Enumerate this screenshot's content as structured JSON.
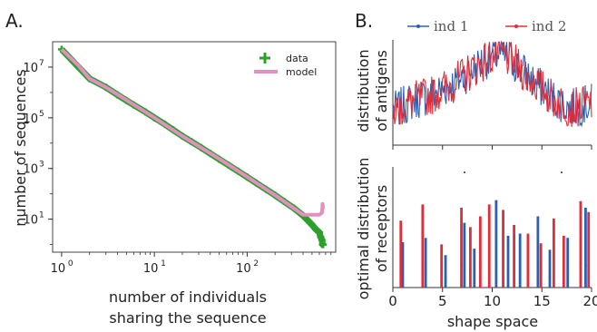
{
  "chart_data": [
    {
      "panel": "A.",
      "type": "scatter",
      "xlabel_line1": "number of individuals",
      "xlabel_line2": "sharing the sequence",
      "ylabel": "number of sequences",
      "xscale": "log",
      "yscale": "log",
      "xlim": [
        0.8,
        900
      ],
      "ylim": [
        0.5,
        100000000
      ],
      "xtick_values": [
        1,
        10,
        100
      ],
      "xtick_labels": [
        {
          "base": "10",
          "exp": "0"
        },
        {
          "base": "10",
          "exp": "1"
        },
        {
          "base": "10",
          "exp": "2"
        }
      ],
      "ytick_values": [
        10,
        1000,
        100000,
        10000000
      ],
      "ytick_labels": [
        {
          "base": "10",
          "exp": "1"
        },
        {
          "base": "10",
          "exp": "3"
        },
        {
          "base": "10",
          "exp": "5"
        },
        {
          "base": "10",
          "exp": "7"
        }
      ],
      "legend_position": "top-right",
      "series": [
        {
          "name": "data",
          "color": "#2ca02c",
          "marker": "plus",
          "x": [
            1,
            2,
            3,
            4,
            5,
            6,
            8,
            10,
            13,
            16,
            20,
            25,
            32,
            40,
            50,
            63,
            80,
            100,
            126,
            160,
            200,
            250,
            320,
            400,
            500,
            550,
            600,
            620,
            640,
            650,
            660
          ],
          "y": [
            50000000,
            3500000,
            1600000,
            800000,
            480000,
            320000,
            170000,
            100000,
            55000,
            33000,
            19000,
            11500,
            6600,
            3900,
            2300,
            1350,
            780,
            460,
            265,
            150,
            88,
            50,
            27,
            14,
            6,
            4,
            3,
            2,
            1.5,
            1,
            1
          ]
        },
        {
          "name": "model",
          "color": "#e38fc2",
          "x": [
            1,
            1.5,
            2,
            3,
            5,
            10,
            20,
            50,
            100,
            200,
            400,
            600,
            640,
            650,
            660
          ],
          "y": [
            50000000,
            12000000,
            3500000,
            1600000,
            500000,
            100000,
            19000,
            2400,
            470,
            88,
            15,
            15,
            18,
            40,
            25
          ]
        }
      ]
    },
    {
      "panel": "B.",
      "type": "line",
      "ylabel_line1": "distribution",
      "ylabel_line2": "of antigens",
      "xlim": [
        0,
        20
      ],
      "legend_position": "top",
      "series": [
        {
          "name": "ind  1",
          "color": "#2a60b0"
        },
        {
          "name": "ind  2",
          "color": "#e02d3a"
        }
      ],
      "envelope": {
        "x": [
          0,
          2,
          4,
          6,
          8,
          10,
          11,
          12,
          14,
          16,
          18,
          20
        ],
        "y": [
          0.32,
          0.42,
          0.48,
          0.58,
          0.72,
          0.85,
          0.86,
          0.8,
          0.62,
          0.45,
          0.35,
          0.4
        ]
      }
    },
    {
      "type": "stem",
      "xlabel": "shape space",
      "ylabel_line1": "optimal distribution",
      "ylabel_line2": "of receptors",
      "xlim": [
        0,
        20
      ],
      "xtick_values": [
        0,
        5,
        10,
        15,
        20
      ],
      "xtick_labels": [
        "0",
        "5",
        "10",
        "15",
        "20"
      ],
      "ylim": [
        0,
        1
      ],
      "series": [
        {
          "name": "ind  1",
          "color": "#2a60b0",
          "x": [
            1.0,
            3.3,
            5.3,
            7.2,
            8.2,
            10.4,
            11.6,
            12.8,
            14.6,
            15.8,
            17.6,
            19.4
          ],
          "y": [
            0.42,
            0.46,
            0.3,
            0.6,
            0.36,
            0.81,
            0.48,
            0.5,
            0.66,
            0.35,
            0.46,
            0.74
          ]
        },
        {
          "name": "ind  2",
          "color": "#e02d3a",
          "x": [
            0.8,
            3.0,
            4.9,
            6.9,
            7.8,
            8.8,
            9.7,
            11.1,
            12.2,
            13.6,
            14.9,
            16.2,
            17.2,
            18.9,
            19.7
          ],
          "y": [
            0.62,
            0.77,
            0.4,
            0.74,
            0.56,
            0.66,
            0.77,
            0.72,
            0.58,
            0.5,
            0.41,
            0.64,
            0.48,
            0.8,
            0.7
          ]
        }
      ]
    }
  ]
}
